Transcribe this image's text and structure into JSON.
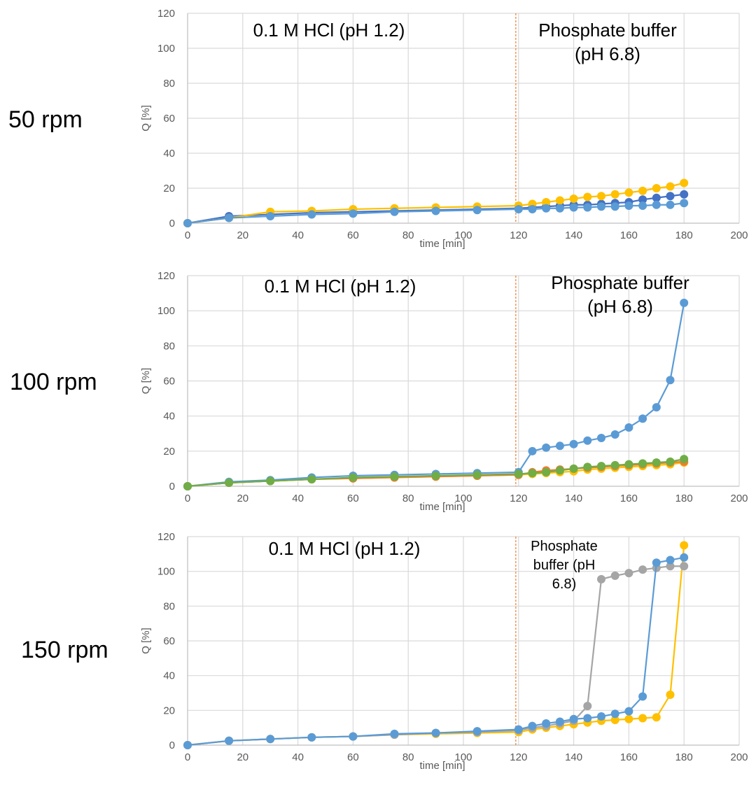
{
  "chart_data": [
    {
      "type": "line",
      "panel_label": "50 rpm",
      "xlabel": "time [min]",
      "ylabel": "Q [%]",
      "xlim": [
        0,
        200
      ],
      "ylim": [
        0,
        120
      ],
      "xticks": [
        0,
        20,
        40,
        60,
        80,
        100,
        120,
        140,
        160,
        180,
        200
      ],
      "yticks": [
        0,
        20,
        40,
        60,
        80,
        100,
        120
      ],
      "grid": true,
      "phase_change_x": 119,
      "annotations": [
        {
          "text": "0.1 M HCl (pH 1.2)",
          "lines": [
            "0.1 M HCl (pH 1.2)"
          ]
        },
        {
          "text": "Phosphate buffer (pH 6.8)",
          "lines": [
            "Phosphate buffer",
            "(pH 6.8)"
          ]
        }
      ],
      "x": [
        0,
        15,
        30,
        45,
        60,
        75,
        90,
        105,
        120,
        125,
        130,
        135,
        140,
        145,
        150,
        155,
        160,
        165,
        170,
        175,
        180
      ],
      "series": [
        {
          "color": "#4472c4",
          "values": [
            0,
            4,
            5,
            6,
            6.5,
            7,
            7.5,
            8,
            8.5,
            9,
            9.5,
            10,
            10.5,
            10.5,
            11,
            11.5,
            12,
            13.5,
            14.5,
            15.5,
            16.5
          ]
        },
        {
          "color": "#ffc000",
          "values": [
            0,
            3,
            6.5,
            7,
            8,
            8.5,
            9,
            9.5,
            10,
            11,
            12,
            13,
            14,
            15,
            15.5,
            16.5,
            17.5,
            18.5,
            20,
            21,
            23
          ]
        },
        {
          "color": "#5b9bd5",
          "values": [
            0,
            3,
            4,
            5,
            5.5,
            6.5,
            7,
            7.5,
            8,
            8,
            8.5,
            8.5,
            9,
            9,
            9.5,
            9.5,
            10,
            10,
            10.5,
            10.5,
            11.5
          ]
        }
      ]
    },
    {
      "type": "line",
      "panel_label": "100 rpm",
      "xlabel": "time [min]",
      "ylabel": "Q [%]",
      "xlim": [
        0,
        200
      ],
      "ylim": [
        0,
        120
      ],
      "xticks": [
        0,
        20,
        40,
        60,
        80,
        100,
        120,
        140,
        160,
        180,
        200
      ],
      "yticks": [
        0,
        20,
        40,
        60,
        80,
        100,
        120
      ],
      "grid": true,
      "phase_change_x": 119,
      "annotations": [
        {
          "text": "0.1 M HCl (pH 1.2)",
          "lines": [
            "0.1 M HCl (pH 1.2)"
          ]
        },
        {
          "text": "Phosphate buffer (pH 6.8)",
          "lines": [
            "Phosphate buffer",
            "(pH 6.8)"
          ]
        }
      ],
      "x": [
        0,
        15,
        30,
        45,
        60,
        75,
        90,
        105,
        120,
        125,
        130,
        135,
        140,
        145,
        150,
        155,
        160,
        165,
        170,
        175,
        180
      ],
      "series": [
        {
          "color": "#ffc000",
          "values": [
            0,
            2,
            3,
            4,
            4.5,
            5,
            5.5,
            6,
            6.5,
            7,
            7.5,
            8,
            8.5,
            9.5,
            10,
            10.5,
            11,
            11.5,
            12,
            12.5,
            13.5
          ]
        },
        {
          "color": "#ed7d31",
          "values": [
            0,
            2,
            3,
            4,
            4.5,
            5,
            5.5,
            6,
            6.5,
            8,
            9,
            9.5,
            10,
            10.5,
            11,
            11.5,
            12,
            12.5,
            13,
            13.5,
            14
          ]
        },
        {
          "color": "#5b9bd5",
          "values": [
            0,
            2.5,
            3.5,
            5,
            6,
            6.5,
            7,
            7.5,
            8,
            20,
            22,
            23,
            24,
            26,
            27.5,
            29.5,
            33.5,
            38.5,
            45,
            60.5,
            104.5
          ]
        },
        {
          "color": "#70ad47",
          "values": [
            0,
            2,
            3,
            4,
            5,
            5.5,
            6,
            6.5,
            7,
            7.5,
            8,
            9,
            10,
            11,
            11.5,
            12,
            12.5,
            13,
            13.5,
            14,
            15.5
          ]
        }
      ]
    },
    {
      "type": "line",
      "panel_label": "150 rpm",
      "xlabel": "time [min]",
      "ylabel": "Q [%]",
      "xlim": [
        0,
        200
      ],
      "ylim": [
        0,
        120
      ],
      "xticks": [
        0,
        20,
        40,
        60,
        80,
        100,
        120,
        140,
        160,
        180,
        200
      ],
      "yticks": [
        0,
        20,
        40,
        60,
        80,
        100,
        120
      ],
      "grid": true,
      "phase_change_x": 119,
      "annotations": [
        {
          "text": "0.1 M HCl (pH 1.2)",
          "lines": [
            "0.1 M HCl (pH 1.2)"
          ]
        },
        {
          "text": "Phosphate buffer (pH 6.8)",
          "lines": [
            "Phosphate",
            "buffer (pH",
            "6.8)"
          ]
        }
      ],
      "x": [
        0,
        15,
        30,
        45,
        60,
        75,
        90,
        105,
        120,
        125,
        130,
        135,
        140,
        145,
        150,
        155,
        160,
        165,
        170,
        175,
        180
      ],
      "series": [
        {
          "color": "#ffc000",
          "values": [
            0,
            2.5,
            3.5,
            4.5,
            5,
            6,
            6.5,
            7,
            7.5,
            9,
            10,
            11,
            12,
            13,
            14,
            14.5,
            15,
            15.5,
            16,
            29,
            115
          ]
        },
        {
          "color": "#a5a5a5",
          "values": [
            0,
            2.5,
            3.5,
            4.5,
            5,
            6,
            7,
            7.5,
            8.5,
            10,
            11,
            12.5,
            14,
            22.5,
            95.5,
            97.5,
            99,
            101,
            102,
            103,
            103
          ]
        },
        {
          "color": "#5b9bd5",
          "values": [
            0,
            2.5,
            3.5,
            4.5,
            5,
            6.5,
            7,
            8,
            9,
            11,
            12.5,
            13.5,
            15,
            15.5,
            16.5,
            18,
            19.5,
            28,
            105,
            106.5,
            108
          ]
        }
      ]
    }
  ]
}
